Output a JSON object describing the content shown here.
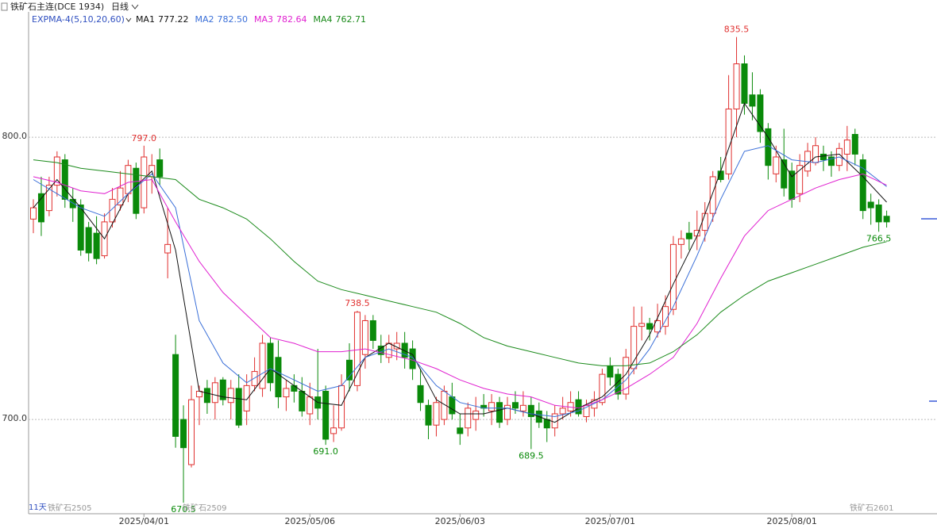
{
  "header": {
    "symbol": "铁矿石主连(DCE 1934)",
    "period": "日线"
  },
  "chart_data": {
    "type": "candlestick",
    "indicator": "EXPMA-4(5,10,20,60)",
    "up_color": "#e0302f",
    "down_color": "#0a8a0a",
    "ylim": [
      666.6,
      844.4
    ],
    "yticks": [
      {
        "value": 700,
        "label": "700.0"
      },
      {
        "value": 800,
        "label": "800.0"
      }
    ],
    "grid": true,
    "categories": [
      null,
      null,
      null,
      null,
      null,
      null,
      null,
      null,
      null,
      null,
      null,
      null,
      null,
      null,
      "2025/04/01",
      null,
      null,
      null,
      null,
      null,
      null,
      null,
      null,
      null,
      null,
      null,
      null,
      null,
      null,
      null,
      null,
      null,
      null,
      null,
      null,
      "2025/05/06",
      null,
      null,
      null,
      null,
      null,
      null,
      null,
      null,
      null,
      null,
      null,
      null,
      null,
      null,
      null,
      null,
      null,
      null,
      "2025/06/03",
      null,
      null,
      null,
      null,
      null,
      null,
      null,
      null,
      null,
      null,
      null,
      null,
      null,
      null,
      null,
      null,
      null,
      null,
      "2025/07/01",
      null,
      null,
      null,
      null,
      null,
      null,
      null,
      null,
      null,
      null,
      null,
      null,
      null,
      null,
      null,
      null,
      null,
      null,
      null,
      null,
      null,
      null,
      "2025/08/01",
      null,
      null,
      null,
      null,
      null,
      null,
      null,
      null,
      null,
      null,
      null,
      null
    ],
    "open": [
      771,
      780,
      774,
      783,
      792,
      778,
      776,
      768,
      766,
      758,
      770,
      776,
      780,
      789,
      775,
      786,
      792,
      759,
      723,
      700,
      684,
      708,
      711,
      706,
      714,
      706,
      711,
      703,
      712,
      711,
      727,
      722,
      708,
      712,
      710,
      702,
      708,
      710,
      695,
      697,
      721,
      712,
      723,
      735,
      726,
      722,
      725,
      727,
      725,
      712,
      705,
      698,
      700,
      708,
      697,
      697,
      700,
      705,
      703,
      706,
      700,
      706,
      703,
      705,
      703,
      700,
      697,
      702,
      703,
      707,
      701,
      704,
      706,
      719,
      716,
      709,
      718,
      733,
      734,
      731,
      733,
      739,
      762,
      766,
      765,
      767,
      773,
      788,
      787,
      810,
      826,
      815,
      815,
      803,
      787,
      792,
      788,
      780,
      788,
      791,
      794,
      793,
      790,
      794,
      801,
      792,
      777,
      776,
      772
    ],
    "high": [
      778,
      786,
      786,
      795,
      794,
      782,
      778,
      770,
      772,
      773,
      782,
      788,
      792,
      791,
      797,
      794,
      796,
      775,
      730,
      705,
      712,
      712,
      714,
      715,
      715,
      714,
      716,
      716,
      722,
      730,
      729,
      728,
      714,
      716,
      715,
      713,
      725,
      712,
      705,
      716,
      727,
      738.5,
      737,
      737,
      730,
      730,
      731,
      731,
      728,
      718,
      707,
      708,
      712,
      713,
      702,
      706,
      708,
      709,
      709,
      708,
      708,
      710,
      710,
      708,
      706,
      703,
      705,
      708,
      710,
      710,
      707,
      710,
      718,
      722,
      718,
      725,
      740,
      740,
      736,
      741,
      744,
      765,
      767,
      770,
      774,
      777,
      788,
      793,
      822,
      835.5,
      829,
      823,
      817,
      805,
      797,
      803,
      791,
      794,
      798,
      800,
      797,
      795,
      798,
      804,
      803,
      794,
      780,
      778,
      774
    ],
    "low": [
      766,
      765,
      772,
      779,
      775,
      770,
      758,
      756,
      755,
      757,
      768,
      774,
      777,
      771,
      773,
      780,
      783,
      750,
      690,
      670.5,
      683,
      698,
      702,
      700,
      705,
      700,
      697,
      698,
      710,
      708,
      710,
      704,
      703,
      706,
      701,
      698,
      700,
      691,
      692,
      696,
      710,
      710,
      718,
      725,
      720,
      720,
      721,
      718,
      714,
      703,
      693,
      694,
      698,
      700,
      691,
      694,
      696,
      701,
      698,
      697,
      698,
      702,
      701,
      689.5,
      697,
      692,
      694,
      700,
      701,
      701,
      699,
      701,
      705,
      712,
      707,
      707,
      716,
      728,
      728,
      729,
      730,
      737,
      757,
      760,
      760,
      763,
      770,
      784,
      785,
      800,
      808,
      806,
      798,
      785,
      784,
      779,
      775,
      777,
      786,
      790,
      788,
      786,
      788,
      788,
      790,
      771,
      769,
      766.5,
      768
    ],
    "close": [
      775,
      770,
      783,
      793,
      778,
      775,
      760,
      759,
      757,
      770,
      778,
      782,
      790,
      773,
      793,
      790,
      786,
      762,
      694,
      690,
      707,
      710,
      706,
      713,
      707,
      711,
      698,
      712,
      717,
      727,
      713,
      708,
      711,
      710,
      703,
      708,
      704,
      693,
      697,
      712,
      714,
      738,
      735,
      728,
      723,
      727,
      727,
      722,
      718,
      706,
      698,
      706,
      710,
      702,
      695,
      704,
      703,
      704,
      706,
      699,
      705,
      704,
      705,
      701,
      699,
      697,
      702,
      704,
      706,
      702,
      705,
      707,
      716,
      715,
      709,
      722,
      733,
      734,
      732,
      735,
      740,
      762,
      764,
      764,
      767,
      773,
      786,
      785,
      810,
      826,
      812,
      811,
      802,
      790,
      793,
      782,
      778,
      790,
      795,
      797,
      792,
      790,
      796,
      799,
      794,
      774,
      775,
      770,
      770
    ],
    "overlays": [
      {
        "name": "MA1",
        "color": "#111111",
        "legend_value": {
          "value": 777.22,
          "label": "777.22"
        },
        "x": [
          0,
          3,
          6,
          9,
          12,
          15,
          18,
          21,
          24,
          27,
          30,
          33,
          36,
          39,
          42,
          45,
          48,
          51,
          54,
          57,
          60,
          63,
          66,
          69,
          72,
          75,
          78,
          81,
          84,
          87,
          90,
          93,
          96,
          99,
          102,
          105,
          108
        ],
        "values": [
          775,
          785,
          775,
          764,
          780,
          788,
          760,
          710,
          708,
          707,
          718,
          712,
          706,
          705,
          722,
          727,
          723,
          707,
          702,
          702,
          704,
          702,
          699,
          704,
          708,
          716,
          730,
          748,
          765,
          788,
          812,
          800,
          786,
          793,
          794,
          786,
          777
        ]
      },
      {
        "name": "MA2",
        "color": "#3a6fd8",
        "legend_value": {
          "value": 782.5,
          "label": "782.50"
        },
        "x": [
          0,
          3,
          6,
          9,
          12,
          15,
          18,
          21,
          24,
          27,
          30,
          33,
          36,
          39,
          42,
          45,
          48,
          51,
          54,
          57,
          60,
          63,
          66,
          69,
          72,
          75,
          78,
          81,
          84,
          87,
          90,
          93,
          96,
          99,
          102,
          105,
          108
        ],
        "values": [
          785,
          780,
          775,
          772,
          780,
          787,
          775,
          735,
          720,
          713,
          718,
          714,
          710,
          712,
          722,
          725,
          722,
          712,
          706,
          704,
          704,
          702,
          701,
          703,
          707,
          714,
          725,
          740,
          758,
          778,
          795,
          797,
          792,
          791,
          793,
          789,
          782.5
        ]
      },
      {
        "name": "MA3",
        "color": "#e020d0",
        "legend_value": {
          "value": 782.64,
          "label": "782.64"
        },
        "x": [
          0,
          3,
          6,
          9,
          12,
          15,
          18,
          21,
          24,
          27,
          30,
          33,
          36,
          39,
          42,
          45,
          48,
          51,
          54,
          57,
          60,
          63,
          66,
          69,
          72,
          75,
          78,
          81,
          84,
          87,
          90,
          93,
          96,
          99,
          102,
          105,
          108
        ],
        "values": [
          786,
          784,
          781,
          780,
          784,
          785,
          770,
          756,
          745,
          737,
          729,
          727,
          724,
          724,
          725,
          723,
          721,
          718,
          714,
          711,
          709,
          708,
          705,
          704,
          707,
          711,
          716,
          722,
          734,
          750,
          765,
          774,
          778,
          782,
          785,
          787,
          783
        ]
      },
      {
        "name": "MA4",
        "color": "#1a8a1a",
        "legend_value": {
          "value": 762.71,
          "label": "762.71"
        },
        "x": [
          0,
          3,
          6,
          9,
          12,
          15,
          18,
          21,
          24,
          27,
          30,
          33,
          36,
          39,
          42,
          45,
          48,
          51,
          54,
          57,
          60,
          63,
          66,
          69,
          72,
          75,
          78,
          81,
          84,
          87,
          90,
          93,
          96,
          99,
          102,
          105,
          108
        ],
        "values": [
          792,
          791,
          789,
          788,
          787,
          786,
          785,
          778,
          775,
          771,
          764,
          756,
          749,
          746,
          744,
          742,
          740,
          738,
          734,
          729,
          726,
          724,
          722,
          720,
          719,
          719,
          720,
          724,
          730,
          738,
          744,
          749,
          752,
          755,
          758,
          761,
          763
        ]
      }
    ],
    "annotations": [
      {
        "index": 14,
        "value": 797,
        "label": "797.0",
        "color": "#e0302f"
      },
      {
        "index": 19,
        "value": 670.5,
        "label": "670.5",
        "color": "#0a8a0a"
      },
      {
        "index": 37,
        "value": 691,
        "label": "691.0",
        "color": "#0a8a0a"
      },
      {
        "index": 41,
        "value": 738.5,
        "label": "738.5",
        "color": "#e0302f"
      },
      {
        "index": 63,
        "value": 689.5,
        "label": "689.5",
        "color": "#0a8a0a"
      },
      {
        "index": 89,
        "value": 835.5,
        "label": "835.5",
        "color": "#e0302f"
      },
      {
        "index": 107,
        "value": 766.5,
        "label": "766.5",
        "color": "#0a8a0a"
      }
    ],
    "contracts": {
      "days": "11天",
      "labels": [
        "铁矿石2505",
        "铁矿石2509",
        "铁矿石2601"
      ]
    }
  }
}
